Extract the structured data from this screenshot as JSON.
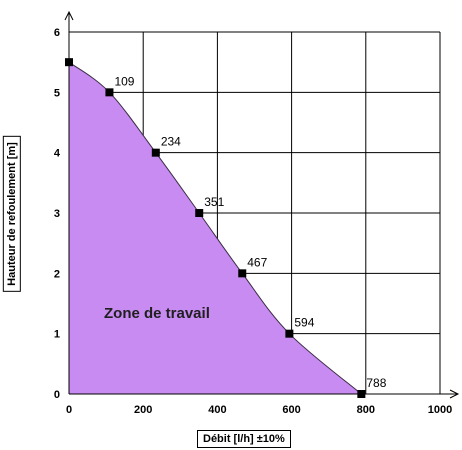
{
  "chart_data": {
    "type": "area",
    "title": "",
    "xlabel": "Débit [l/h] ±10%",
    "ylabel": "Hauteur de refoulement [m]",
    "xlim": [
      0,
      1000
    ],
    "ylim": [
      0,
      6
    ],
    "xticks": [
      "0",
      "200",
      "400",
      "600",
      "800",
      "1000"
    ],
    "yticks": [
      "0",
      "1",
      "2",
      "3",
      "4",
      "5",
      "6"
    ],
    "grid": true,
    "fill_color": "#c88bf2",
    "marker_color": "#000000",
    "annotation": "Zone de travail",
    "points": [
      {
        "x": 0,
        "y": 5.5,
        "label": ""
      },
      {
        "x": 109,
        "y": 5,
        "label": "109"
      },
      {
        "x": 234,
        "y": 4,
        "label": "234"
      },
      {
        "x": 351,
        "y": 3,
        "label": "351"
      },
      {
        "x": 467,
        "y": 2,
        "label": "467"
      },
      {
        "x": 594,
        "y": 1,
        "label": "594"
      },
      {
        "x": 788,
        "y": 0,
        "label": "788"
      }
    ]
  }
}
